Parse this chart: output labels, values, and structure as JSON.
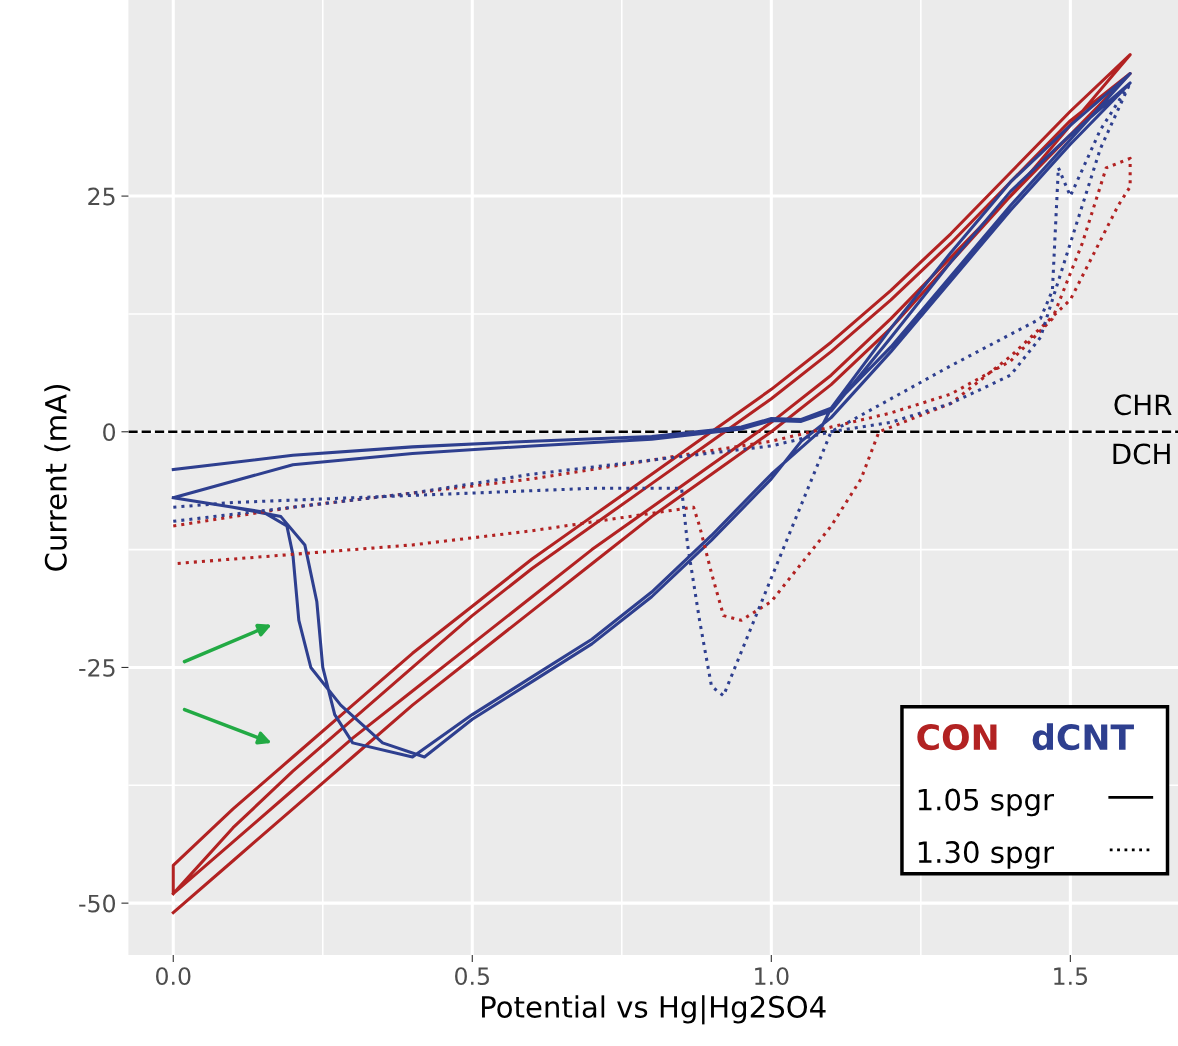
{
  "chart_data": {
    "type": "line",
    "xlabel": "Potential vs Hg|Hg2SO4",
    "ylabel": "Current (mA)",
    "xlim": [
      -0.075,
      1.68
    ],
    "ylim": [
      -55.5,
      45.8
    ],
    "xticks": [
      {
        "value": 0,
        "label": "0.0"
      },
      {
        "value": 0.5,
        "label": "0.5"
      },
      {
        "value": 1,
        "label": "1.0"
      },
      {
        "value": 1.5,
        "label": "1.5"
      }
    ],
    "yticks": [
      {
        "value": -50,
        "label": "-50"
      },
      {
        "value": -25,
        "label": "-25"
      },
      0,
      25
    ],
    "grid": true,
    "marker": "none",
    "ref_lines": [
      {
        "axis": "y",
        "value": 0,
        "color": "#000000",
        "line_style": "dashed"
      }
    ],
    "annotations": [
      "CHR",
      "DCH",
      "CON",
      "dCNT",
      "1.05 spgr",
      "1.30 spgr"
    ],
    "series": [
      {
        "color": "#b22222",
        "line_style": "solid",
        "x": [
          0,
          0.1,
          0.2,
          0.3,
          0.4,
          0.5,
          0.6,
          0.7,
          0.8,
          0.9,
          1.0,
          1.1,
          1.2,
          1.3,
          1.4,
          1.5,
          1.6,
          1.5,
          1.4,
          1.3,
          1.2,
          1.1,
          1.0,
          0.9,
          0.8,
          0.7,
          0.6,
          0.5,
          0.4,
          0.3,
          0.2,
          0.1,
          0,
          0,
          0.1,
          0.2,
          0.3,
          0.4,
          0.5,
          0.6,
          0.7,
          0.8,
          0.9,
          1.0,
          1.1,
          1.2,
          1.3,
          1.4,
          1.5,
          1.6,
          1.5,
          1.4,
          1.3,
          1.2,
          1.1,
          1.0,
          0.9,
          0.8,
          0.7,
          0.6,
          0.5,
          0.4,
          0.3,
          0.2,
          0.1,
          0
        ],
        "values": [
          -51,
          -45.5,
          -40,
          -34.5,
          -29,
          -24,
          -19,
          -14,
          -9,
          -4.5,
          0,
          5,
          11,
          18,
          25,
          32.5,
          40,
          34,
          27.5,
          21,
          15,
          9.5,
          4.5,
          0,
          -4.5,
          -9,
          -13.5,
          -18.5,
          -23.5,
          -29,
          -34.5,
          -40,
          -46,
          -49,
          -43.5,
          -38,
          -32.5,
          -27.5,
          -22.5,
          -17.5,
          -12.5,
          -8,
          -3.5,
          1,
          6,
          12,
          18.5,
          25,
          31.5,
          38,
          33,
          26.5,
          20,
          14,
          8.5,
          3.5,
          -1,
          -5.5,
          -10,
          -14.5,
          -19.5,
          -25,
          -30.5,
          -36,
          -42,
          -49
        ]
      },
      {
        "color": "#2e3f8f",
        "line_style": "solid",
        "x": [
          0,
          0.2,
          0.4,
          0.6,
          0.8,
          0.95,
          1.0,
          1.05,
          1.1,
          1.2,
          1.3,
          1.4,
          1.5,
          1.6,
          1.5,
          1.4,
          1.3,
          1.2,
          1.1,
          1.08,
          1.0,
          0.9,
          0.8,
          0.7,
          0.6,
          0.5,
          0.4,
          0.3,
          0.27,
          0.25,
          0.24,
          0.22,
          0.18,
          0.1,
          0,
          0.2,
          0.4,
          0.6,
          0.8,
          0.95,
          1.0,
          1.05,
          1.1,
          1.2,
          1.3,
          1.4,
          1.5,
          1.6,
          1.5,
          1.4,
          1.3,
          1.2,
          1.1,
          1.05,
          1.0,
          0.9,
          0.8,
          0.7,
          0.6,
          0.5,
          0.42,
          0.35,
          0.28,
          0.23,
          0.21,
          0.2,
          0.19,
          0.15,
          0.1,
          0
        ],
        "values": [
          -4,
          -2.5,
          -1.6,
          -1,
          -0.5,
          0.5,
          1.4,
          1.3,
          2.5,
          11,
          19,
          26.5,
          32.5,
          38,
          31,
          24,
          16.5,
          9,
          2.5,
          0,
          -4.5,
          -11,
          -17,
          -22,
          -26,
          -30,
          -34.5,
          -33,
          -30,
          -25,
          -18,
          -12,
          -9,
          -8,
          -7,
          -3.5,
          -2.3,
          -1.5,
          -0.8,
          0.3,
          1.2,
          1.1,
          2.2,
          10,
          18,
          25.5,
          31.5,
          37,
          30.5,
          23.5,
          16,
          8.5,
          1.5,
          -1,
          -5,
          -11.5,
          -17.5,
          -22.5,
          -26.5,
          -30.5,
          -34.5,
          -33,
          -29,
          -25,
          -20,
          -13,
          -10,
          -8.5,
          -8,
          -7
        ]
      },
      {
        "color": "#b22222",
        "line_style": "dotted",
        "x": [
          0,
          0.2,
          0.4,
          0.6,
          0.8,
          1.0,
          1.1,
          1.2,
          1.3,
          1.4,
          1.47,
          1.52,
          1.56,
          1.6,
          1.6,
          1.58,
          1.5,
          1.4,
          1.3,
          1.2,
          1.18,
          1.15,
          1.1,
          1.05,
          1.0,
          0.95,
          0.92,
          0.9,
          0.88,
          0.87,
          0.6,
          0.4,
          0.2,
          0
        ],
        "values": [
          -10,
          -8,
          -6.5,
          -5,
          -3,
          -1,
          0.5,
          2,
          4,
          7.5,
          12,
          20,
          28,
          29,
          26,
          24,
          14,
          8,
          3,
          0.5,
          0,
          -5,
          -10,
          -14,
          -18,
          -20,
          -19.5,
          -15,
          -10,
          -8,
          -10.5,
          -12,
          -13,
          -14
        ]
      },
      {
        "color": "#2e3f8f",
        "line_style": "dotted",
        "x": [
          0,
          0.2,
          0.4,
          0.6,
          0.8,
          1.0,
          1.1,
          1.2,
          1.3,
          1.4,
          1.45,
          1.5,
          1.55,
          1.6,
          1.55,
          1.5,
          1.48,
          1.47,
          1.45,
          1.3,
          1.1,
          1.0,
          0.92,
          0.9,
          0.88,
          0.86,
          0.85,
          0.7,
          0.5,
          0.3,
          0.1,
          0
        ],
        "values": [
          -9.5,
          -8,
          -6.5,
          -4.5,
          -3,
          -1.5,
          0,
          1,
          3,
          6,
          10,
          20,
          30,
          37,
          32,
          25,
          28,
          15,
          12,
          7,
          0,
          -15.5,
          -28,
          -27,
          -20,
          -12,
          -6,
          -6,
          -6.5,
          -7,
          -7.5,
          -8
        ]
      }
    ]
  }
}
